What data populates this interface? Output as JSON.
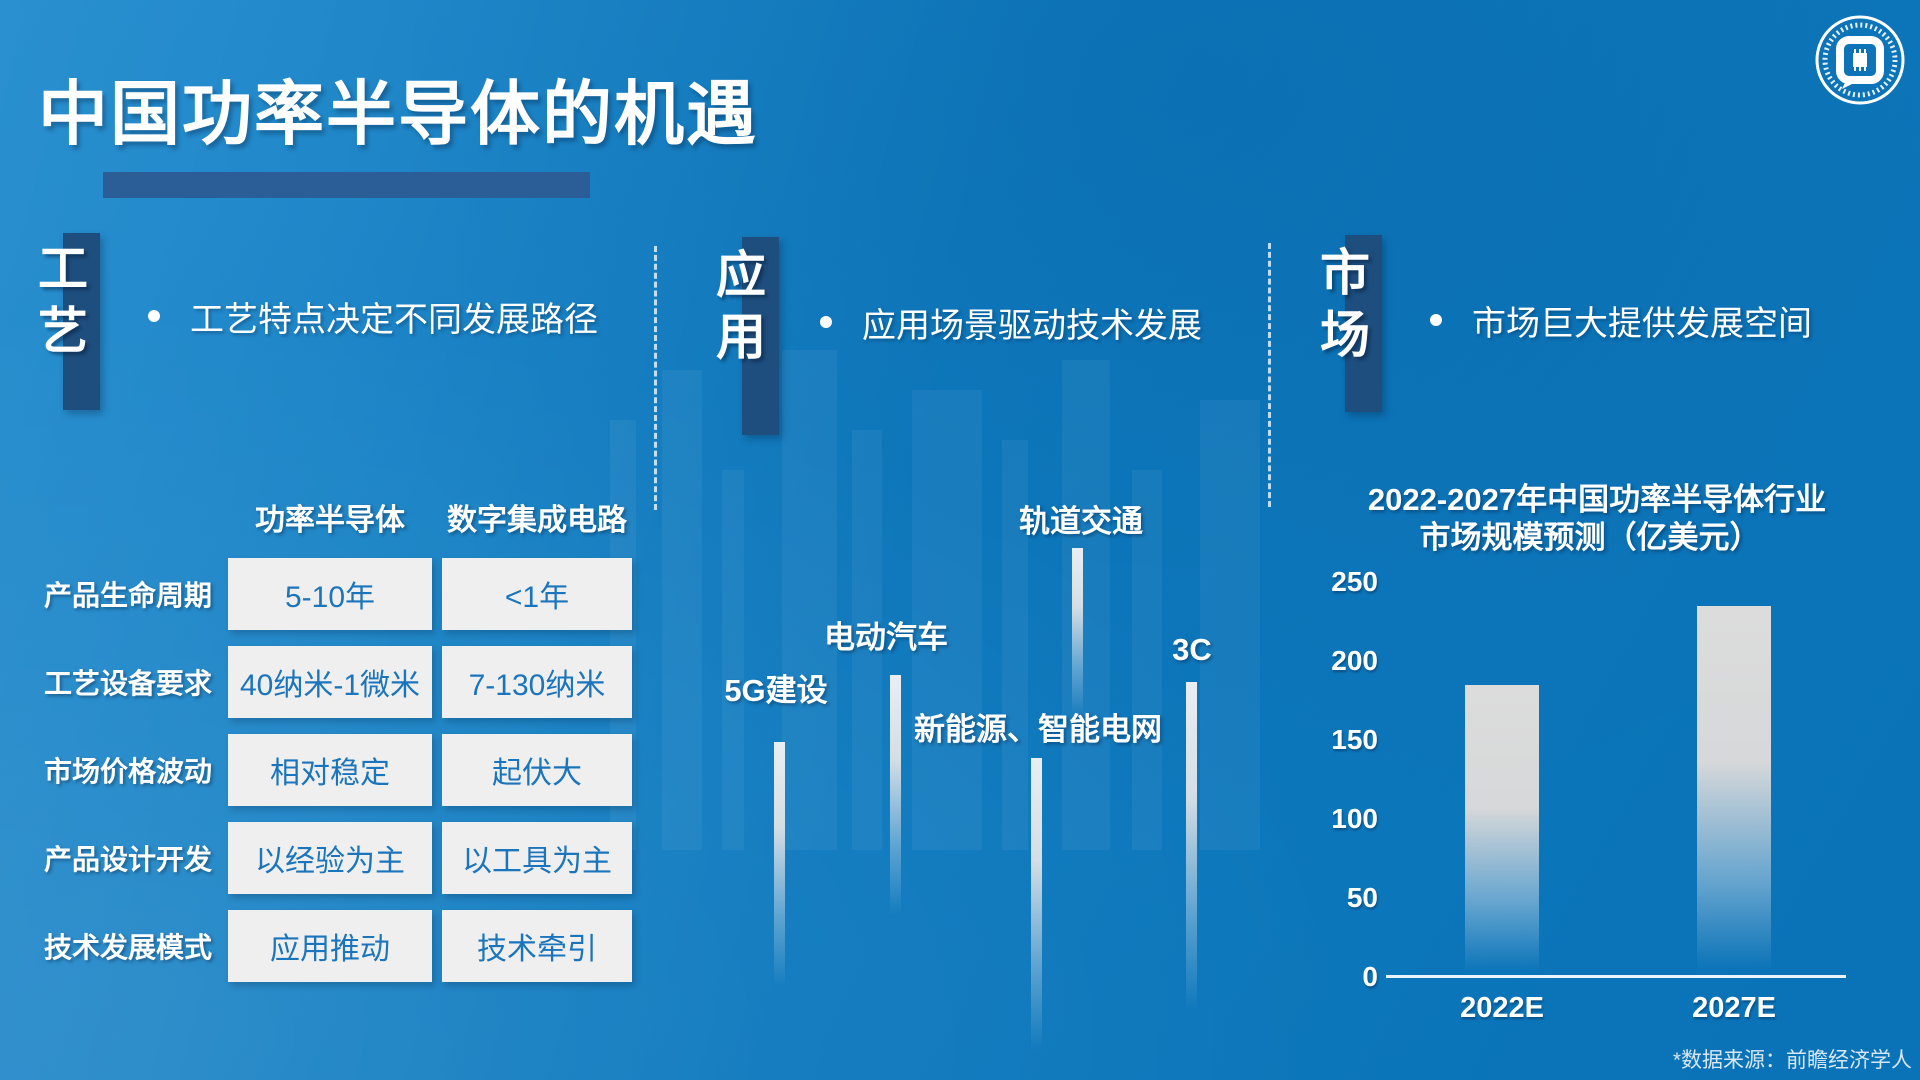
{
  "title": "中国功率半导体的机遇",
  "sections": {
    "process": {
      "tab": "工艺",
      "bullet": "工艺特点决定不同发展路径"
    },
    "application": {
      "tab": "应用",
      "bullet": "应用场景驱动技术发展"
    },
    "market": {
      "tab": "市场",
      "bullet": "市场巨大提供发展空间"
    }
  },
  "comparison_table": {
    "col_headers": [
      "功率半导体",
      "数字集成电路"
    ],
    "rows": [
      {
        "label": "产品生命周期",
        "power_semiconductor": "5-10年",
        "digital_ic": "<1年"
      },
      {
        "label": "工艺设备要求",
        "power_semiconductor": "40纳米-1微米",
        "digital_ic": "7-130纳米"
      },
      {
        "label": "市场价格波动",
        "power_semiconductor": "相对稳定",
        "digital_ic": "起伏大"
      },
      {
        "label": "产品设计开发",
        "power_semiconductor": "以经验为主",
        "digital_ic": "以工具为主"
      },
      {
        "label": "技术发展模式",
        "power_semiconductor": "应用推动",
        "digital_ic": "技术牵引"
      }
    ]
  },
  "application_fields": [
    "5G建设",
    "电动汽车",
    "新能源、智能电网",
    "轨道交通",
    "3C"
  ],
  "chart_data": {
    "type": "bar",
    "title_line1": "2022-2027年中国功率半导体行业",
    "title_line2": "市场规模预测（亿美元）",
    "categories": [
      "2022E",
      "2027E"
    ],
    "values": [
      185,
      235
    ],
    "yticks": [
      250,
      200,
      150,
      100,
      50,
      0
    ],
    "ylim": [
      0,
      250
    ],
    "grid": false,
    "legend": "none"
  },
  "footnote": "*数据来源：前瞻经济学人",
  "colors": {
    "background": "#0E7CC1",
    "panel_navy": "#1E4E7E",
    "title_underline": "#2B5D97",
    "cell_bg": "#EFEFEF",
    "cell_text": "#1B75BC"
  }
}
